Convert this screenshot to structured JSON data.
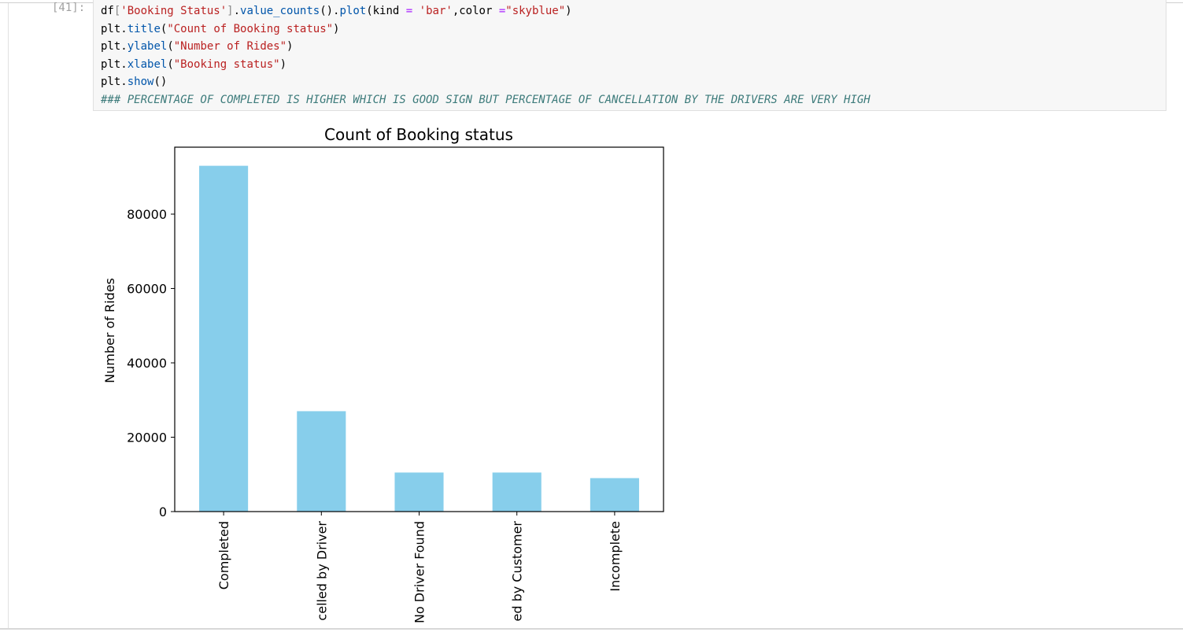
{
  "cell": {
    "prompt": "[41]:",
    "lines": [
      "df['Booking Status'].value_counts().plot(kind = 'bar',color =\"skyblue\")",
      "plt.title(\"Count of Booking status\")",
      "plt.ylabel(\"Number of Rides\")",
      "plt.xlabel(\"Booking status\")",
      "plt.show()",
      "### PERCENTAGE OF COMPLETED IS HIGHER WHICH IS GOOD SIGN BUT PERCENTAGE OF CANCELLATION BY THE DRIVERS ARE VERY HIGH"
    ]
  },
  "chart_data": {
    "type": "bar",
    "title": "Count of Booking status",
    "y_label": "Number of Rides",
    "categories": [
      "Completed",
      "celled by Driver",
      "No Driver Found",
      "ed by Customer",
      "Incomplete"
    ],
    "values": [
      93000,
      27000,
      10500,
      10500,
      9000
    ],
    "color": "#87ceeb",
    "ylim": [
      0,
      98000
    ],
    "yticks": [
      0,
      20000,
      40000,
      60000,
      80000
    ]
  }
}
